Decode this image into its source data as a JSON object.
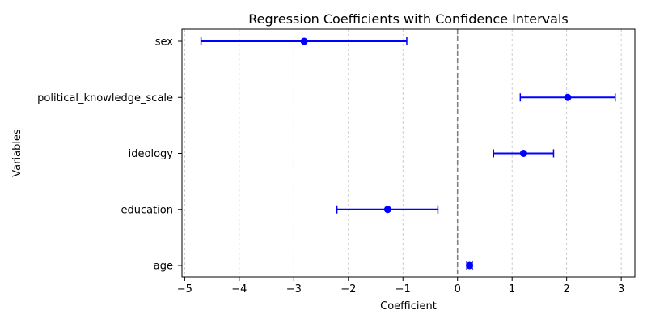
{
  "chart_data": {
    "type": "scatter",
    "orientation": "horizontal",
    "title": "Regression Coefficients with Confidence Intervals",
    "xlabel": "Coefficient",
    "ylabel": "Variables",
    "xlim": [
      -5.05,
      3.25
    ],
    "x_ticks": [
      -5,
      -4,
      -3,
      -2,
      -1,
      0,
      1,
      2,
      3
    ],
    "x_tick_labels": [
      "−5",
      "−4",
      "−3",
      "−2",
      "−1",
      "0",
      "1",
      "2",
      "3"
    ],
    "grid": "vertical dashed",
    "reference_line": {
      "x": 0,
      "style": "dashed",
      "color": "#808080"
    },
    "marker_color": "#0000ff",
    "points": [
      {
        "variable": "age",
        "coef": 0.22,
        "ci_low": 0.17,
        "ci_high": 0.27
      },
      {
        "variable": "education",
        "coef": -1.28,
        "ci_low": -2.21,
        "ci_high": -0.36
      },
      {
        "variable": "ideology",
        "coef": 1.21,
        "ci_low": 0.66,
        "ci_high": 1.76
      },
      {
        "variable": "political_knowledge_scale",
        "coef": 2.02,
        "ci_low": 1.15,
        "ci_high": 2.89
      },
      {
        "variable": "sex",
        "coef": -2.81,
        "ci_low": -4.7,
        "ci_high": -0.93
      }
    ]
  }
}
